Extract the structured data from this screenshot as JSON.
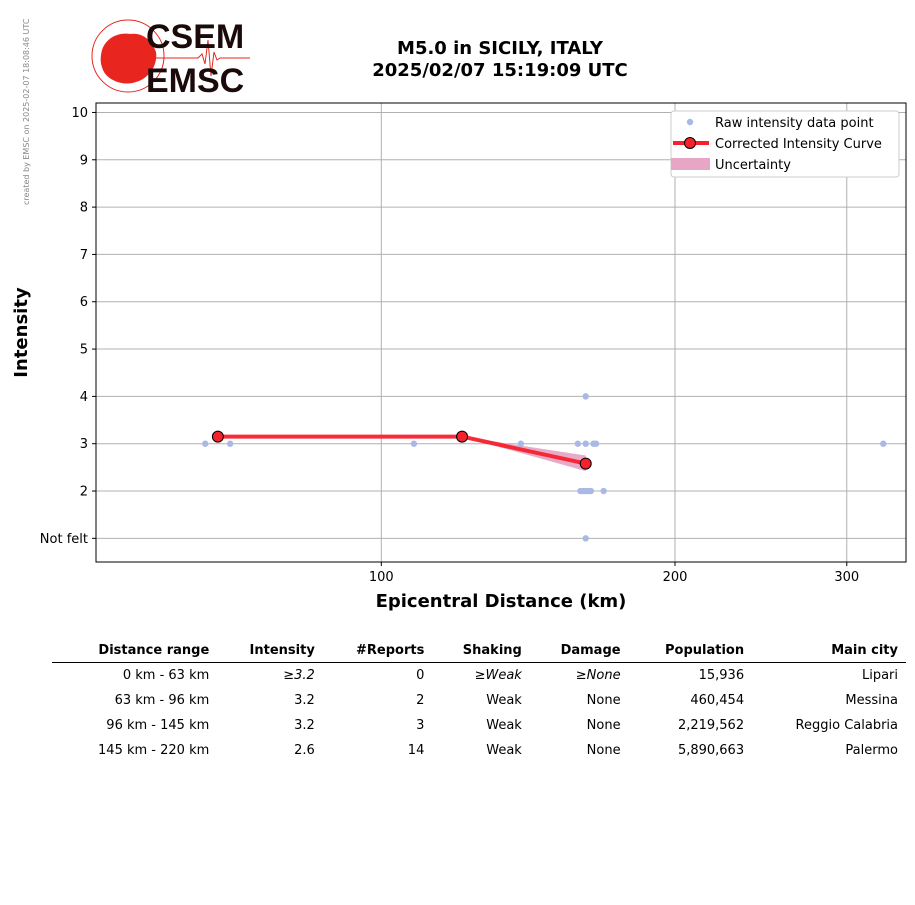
{
  "credit_text": "created by EMSC on 2025-02-07 18:08:46 UTC",
  "logo": {
    "line1": "CSEM",
    "line2": "EMSC"
  },
  "title_line1": "M5.0 in SICILY, ITALY",
  "title_line2": "2025/02/07 15:19:09 UTC",
  "colors": {
    "raw": "#aab8e6",
    "curve": "#f5222d",
    "uncertainty": "#e7a6c4",
    "logo_red": "#e8261f",
    "grid": "#b0b0b0"
  },
  "chart_data": {
    "type": "scatter",
    "xlabel": "Epicentral Distance (km)",
    "ylabel": "Intensity",
    "x_scale": "log",
    "xlim": [
      51,
      345
    ],
    "ylim": [
      0.5,
      10.2
    ],
    "x_ticks": [
      100,
      200,
      300
    ],
    "y_ticks": [
      {
        "value": 1,
        "label": "Not felt"
      },
      {
        "value": 2,
        "label": "2"
      },
      {
        "value": 3,
        "label": "3"
      },
      {
        "value": 4,
        "label": "4"
      },
      {
        "value": 5,
        "label": "5"
      },
      {
        "value": 6,
        "label": "6"
      },
      {
        "value": 7,
        "label": "7"
      },
      {
        "value": 8,
        "label": "8"
      },
      {
        "value": 9,
        "label": "9"
      },
      {
        "value": 10,
        "label": "10"
      }
    ],
    "grid": true,
    "legend_position": "top-right",
    "legend": [
      {
        "key": "raw",
        "label": "Raw intensity data point"
      },
      {
        "key": "curve",
        "label": "Corrected Intensity Curve"
      },
      {
        "key": "uncertainty",
        "label": "Uncertainty"
      }
    ],
    "raw_points": [
      {
        "x": 66,
        "y": 3
      },
      {
        "x": 70,
        "y": 3
      },
      {
        "x": 108,
        "y": 3
      },
      {
        "x": 139,
        "y": 3
      },
      {
        "x": 159,
        "y": 3
      },
      {
        "x": 162,
        "y": 3
      },
      {
        "x": 165,
        "y": 3
      },
      {
        "x": 166,
        "y": 3
      },
      {
        "x": 162,
        "y": 4
      },
      {
        "x": 160,
        "y": 2
      },
      {
        "x": 161,
        "y": 2
      },
      {
        "x": 162,
        "y": 2
      },
      {
        "x": 163,
        "y": 2
      },
      {
        "x": 164,
        "y": 2
      },
      {
        "x": 169,
        "y": 2
      },
      {
        "x": 162,
        "y": 1
      },
      {
        "x": 327,
        "y": 3
      }
    ],
    "curve": [
      {
        "x": 68,
        "y": 3.15
      },
      {
        "x": 121,
        "y": 3.15
      },
      {
        "x": 162,
        "y": 2.58
      }
    ],
    "uncertainty": [
      {
        "x": 121,
        "low": 3.15,
        "high": 3.15
      },
      {
        "x": 162,
        "low": 2.42,
        "high": 2.75
      }
    ]
  },
  "table": {
    "headers": [
      "Distance range",
      "Intensity",
      "#Reports",
      "Shaking",
      "Damage",
      "Population",
      "Main city"
    ],
    "rows": [
      [
        "0 km -   63 km",
        "≥3.2",
        "0",
        "≥Weak",
        "≥None",
        "15,936",
        "Lipari"
      ],
      [
        "63 km -   96 km",
        "3.2",
        "2",
        "Weak",
        "None",
        "460,454",
        "Messina"
      ],
      [
        "96 km -  145 km",
        "3.2",
        "3",
        "Weak",
        "None",
        "2,219,562",
        "Reggio Calabria"
      ],
      [
        "145 km -  220 km",
        "2.6",
        "14",
        "Weak",
        "None",
        "5,890,663",
        "Palermo"
      ]
    ]
  }
}
